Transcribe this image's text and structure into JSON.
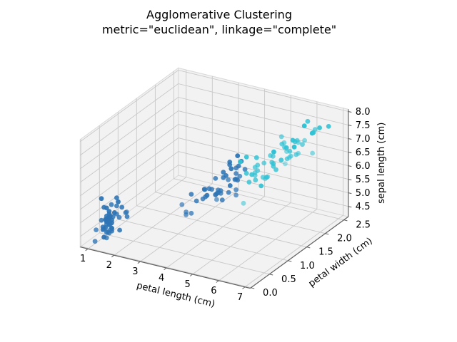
{
  "title": {
    "line1": "Agglomerative Clustering",
    "line2": "metric=\"euclidean\", linkage=\"complete\""
  },
  "chart_data": {
    "type": "scatter",
    "projection": "3d",
    "view": {
      "elev": 30,
      "azim": -60
    },
    "grid": true,
    "legend": "none",
    "axes": {
      "x": {
        "label": "petal length (cm)",
        "ticks": [
          "1",
          "2",
          "3",
          "4",
          "5",
          "6",
          "7"
        ],
        "range": [
          0.7,
          7.2
        ]
      },
      "y": {
        "label": "petal width (cm)",
        "ticks": [
          "0.0",
          "0.5",
          "1.0",
          "1.5",
          "2.0",
          "2.5"
        ],
        "range": [
          -0.02,
          2.62
        ]
      },
      "z": {
        "label": "sepal length (cm)",
        "ticks": [
          "4.5",
          "5.0",
          "5.5",
          "6.0",
          "6.5",
          "7.0",
          "7.5",
          "8.0"
        ],
        "range": [
          4.12,
          8.08
        ]
      }
    },
    "style": {
      "background": "#ffffff",
      "pane": "#f2f2f2",
      "pane_edge": "#d9d9d9",
      "grid": "#c8c8c8",
      "spine": "#616161",
      "text": "#000000"
    },
    "series": [
      {
        "name": "cluster-blue",
        "color": "#2d74b5",
        "points": [
          [
            1.4,
            0.2,
            5.1
          ],
          [
            1.4,
            0.2,
            4.9
          ],
          [
            1.3,
            0.2,
            4.7
          ],
          [
            1.5,
            0.2,
            4.6
          ],
          [
            1.4,
            0.2,
            5.0
          ],
          [
            1.7,
            0.4,
            5.4
          ],
          [
            1.4,
            0.3,
            4.6
          ],
          [
            1.5,
            0.2,
            5.0
          ],
          [
            1.4,
            0.2,
            4.4
          ],
          [
            1.5,
            0.1,
            4.9
          ],
          [
            1.5,
            0.2,
            5.4
          ],
          [
            1.6,
            0.2,
            4.8
          ],
          [
            1.4,
            0.1,
            4.8
          ],
          [
            1.1,
            0.1,
            4.3
          ],
          [
            1.2,
            0.2,
            5.8
          ],
          [
            1.5,
            0.4,
            5.7
          ],
          [
            1.3,
            0.4,
            5.4
          ],
          [
            1.4,
            0.3,
            5.1
          ],
          [
            1.7,
            0.3,
            5.7
          ],
          [
            1.5,
            0.3,
            5.1
          ],
          [
            1.7,
            0.2,
            5.4
          ],
          [
            1.5,
            0.4,
            5.1
          ],
          [
            1.0,
            0.2,
            4.6
          ],
          [
            1.7,
            0.5,
            5.1
          ],
          [
            1.9,
            0.2,
            4.8
          ],
          [
            1.6,
            0.2,
            5.0
          ],
          [
            1.6,
            0.4,
            5.0
          ],
          [
            1.5,
            0.2,
            5.2
          ],
          [
            1.4,
            0.2,
            5.2
          ],
          [
            1.6,
            0.2,
            4.7
          ],
          [
            1.6,
            0.2,
            4.8
          ],
          [
            1.5,
            0.4,
            5.4
          ],
          [
            1.5,
            0.1,
            5.2
          ],
          [
            1.4,
            0.2,
            5.5
          ],
          [
            1.5,
            0.2,
            4.9
          ],
          [
            1.2,
            0.2,
            5.0
          ],
          [
            1.3,
            0.2,
            5.5
          ],
          [
            1.4,
            0.1,
            4.9
          ],
          [
            1.3,
            0.2,
            4.4
          ],
          [
            1.5,
            0.2,
            5.1
          ],
          [
            1.3,
            0.3,
            5.0
          ],
          [
            1.3,
            0.3,
            4.5
          ],
          [
            1.3,
            0.2,
            4.4
          ],
          [
            1.6,
            0.6,
            5.0
          ],
          [
            1.9,
            0.4,
            5.1
          ],
          [
            1.4,
            0.3,
            4.8
          ],
          [
            1.6,
            0.2,
            5.1
          ],
          [
            1.4,
            0.2,
            4.6
          ],
          [
            1.5,
            0.2,
            5.3
          ],
          [
            1.4,
            0.2,
            5.0
          ],
          [
            4.7,
            1.4,
            7.0
          ],
          [
            4.5,
            1.5,
            6.4
          ],
          [
            4.0,
            1.3,
            5.5
          ],
          [
            4.6,
            1.5,
            6.5
          ],
          [
            4.5,
            1.3,
            5.7
          ],
          [
            4.7,
            1.6,
            6.3
          ],
          [
            3.3,
            1.0,
            4.9
          ],
          [
            4.6,
            1.3,
            6.6
          ],
          [
            3.9,
            1.4,
            5.2
          ],
          [
            3.5,
            1.0,
            5.0
          ],
          [
            4.2,
            1.5,
            5.9
          ],
          [
            4.0,
            1.0,
            6.0
          ],
          [
            4.7,
            1.4,
            6.1
          ],
          [
            3.6,
            1.3,
            5.6
          ],
          [
            4.4,
            1.4,
            6.7
          ],
          [
            4.5,
            1.5,
            5.6
          ],
          [
            4.1,
            1.0,
            5.8
          ],
          [
            4.5,
            1.5,
            6.2
          ],
          [
            3.9,
            1.1,
            5.6
          ],
          [
            4.0,
            1.3,
            6.1
          ],
          [
            4.7,
            1.2,
            6.1
          ],
          [
            4.3,
            1.3,
            6.4
          ],
          [
            4.4,
            1.4,
            6.6
          ],
          [
            4.5,
            1.5,
            6.0
          ],
          [
            3.5,
            1.0,
            5.7
          ],
          [
            3.8,
            1.1,
            5.5
          ],
          [
            3.7,
            1.0,
            5.5
          ],
          [
            3.9,
            1.2,
            5.8
          ],
          [
            4.5,
            1.5,
            5.4
          ],
          [
            4.5,
            1.6,
            6.0
          ],
          [
            4.7,
            1.5,
            6.7
          ],
          [
            4.4,
            1.3,
            6.3
          ],
          [
            4.1,
            1.3,
            5.6
          ],
          [
            4.0,
            1.3,
            5.5
          ],
          [
            4.4,
            1.2,
            5.5
          ],
          [
            4.6,
            1.4,
            6.1
          ],
          [
            4.0,
            1.2,
            5.8
          ],
          [
            3.3,
            1.0,
            5.0
          ],
          [
            4.2,
            1.3,
            5.6
          ],
          [
            4.2,
            1.2,
            5.7
          ],
          [
            4.2,
            1.3,
            5.7
          ],
          [
            4.3,
            1.3,
            6.2
          ],
          [
            3.0,
            1.1,
            5.1
          ],
          [
            4.1,
            1.3,
            5.7
          ]
        ]
      },
      {
        "name": "cluster-cyan",
        "color": "#30c2d4",
        "points": [
          [
            4.9,
            1.5,
            6.9
          ],
          [
            4.8,
            1.8,
            5.9
          ],
          [
            4.9,
            1.5,
            6.3
          ],
          [
            4.8,
            1.4,
            6.8
          ],
          [
            5.0,
            1.7,
            6.7
          ],
          [
            5.1,
            1.6,
            6.0
          ],
          [
            6.0,
            2.5,
            6.3
          ],
          [
            5.1,
            1.9,
            5.8
          ],
          [
            5.9,
            2.1,
            7.1
          ],
          [
            5.6,
            1.8,
            6.3
          ],
          [
            5.8,
            2.2,
            6.5
          ],
          [
            6.6,
            2.1,
            7.6
          ],
          [
            4.5,
            1.7,
            4.9
          ],
          [
            6.3,
            1.8,
            7.3
          ],
          [
            5.8,
            1.8,
            6.7
          ],
          [
            6.1,
            2.5,
            7.2
          ],
          [
            5.1,
            2.0,
            6.5
          ],
          [
            5.3,
            1.9,
            6.4
          ],
          [
            5.5,
            2.1,
            6.8
          ],
          [
            5.0,
            2.0,
            5.7
          ],
          [
            5.1,
            2.4,
            5.8
          ],
          [
            5.3,
            2.3,
            6.4
          ],
          [
            5.5,
            1.8,
            6.5
          ],
          [
            6.7,
            2.2,
            7.7
          ],
          [
            6.9,
            2.3,
            7.7
          ],
          [
            5.0,
            1.5,
            6.0
          ],
          [
            5.7,
            2.3,
            6.9
          ],
          [
            4.9,
            2.0,
            5.6
          ],
          [
            6.7,
            2.0,
            7.7
          ],
          [
            4.9,
            1.8,
            6.3
          ],
          [
            5.7,
            2.1,
            6.7
          ],
          [
            6.0,
            1.8,
            7.2
          ],
          [
            4.8,
            1.8,
            6.2
          ],
          [
            4.9,
            1.8,
            6.1
          ],
          [
            5.6,
            2.1,
            6.4
          ],
          [
            5.8,
            1.6,
            7.2
          ],
          [
            6.1,
            1.9,
            7.4
          ],
          [
            6.4,
            2.0,
            7.9
          ],
          [
            5.6,
            2.2,
            6.4
          ],
          [
            5.1,
            1.5,
            6.3
          ],
          [
            5.6,
            1.4,
            6.1
          ],
          [
            6.1,
            2.3,
            7.7
          ],
          [
            5.6,
            2.4,
            6.3
          ],
          [
            5.5,
            1.8,
            6.4
          ],
          [
            4.8,
            1.8,
            6.0
          ],
          [
            5.4,
            2.1,
            6.9
          ],
          [
            5.6,
            2.4,
            6.7
          ],
          [
            5.1,
            2.3,
            6.9
          ],
          [
            5.1,
            1.9,
            5.8
          ],
          [
            5.9,
            2.3,
            6.8
          ],
          [
            5.7,
            2.5,
            6.7
          ],
          [
            5.2,
            2.3,
            6.7
          ],
          [
            5.0,
            1.9,
            6.3
          ],
          [
            5.2,
            2.0,
            6.5
          ],
          [
            5.4,
            2.3,
            6.2
          ],
          [
            5.1,
            1.8,
            5.9
          ]
        ]
      }
    ]
  }
}
